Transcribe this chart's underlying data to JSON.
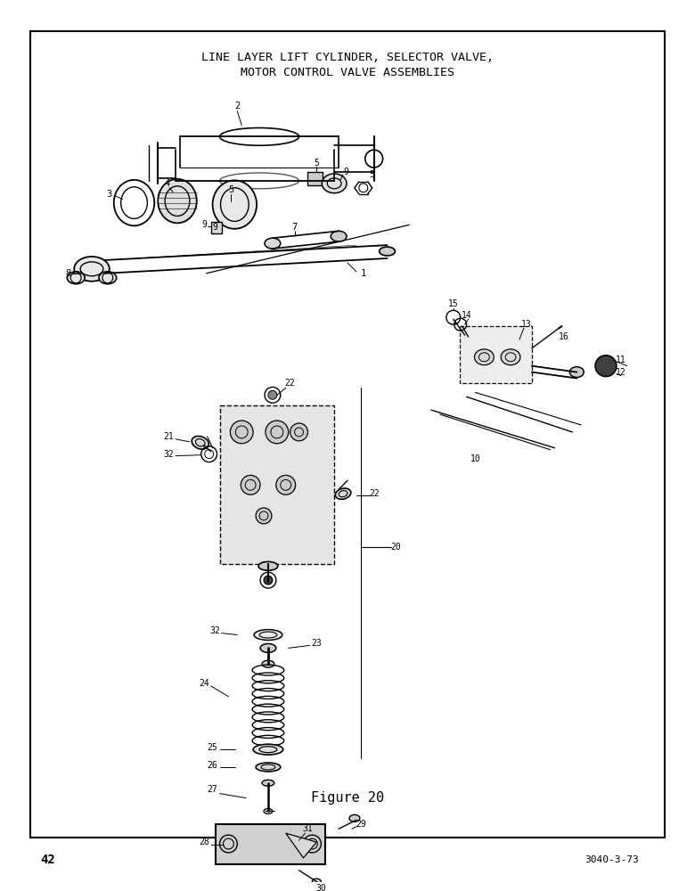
{
  "title_line1": "LINE LAYER LIFT CYLINDER, SELECTOR VALVE,",
  "title_line2": "MOTOR CONTROL VALVE ASSEMBLIES",
  "figure_label": "Figure 20",
  "page_number": "42",
  "doc_number": "3040-3-73",
  "bg_color": "#ffffff",
  "border_color": "#000000",
  "text_color": "#000000",
  "title_fontsize": 9.5,
  "label_fontsize": 7,
  "figure_label_fontsize": 11
}
